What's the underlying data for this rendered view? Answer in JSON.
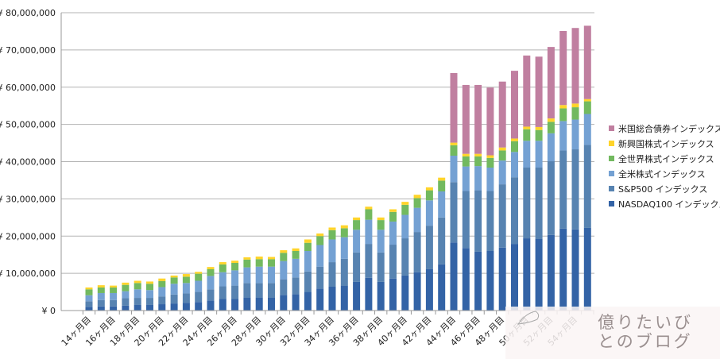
{
  "chart_data": {
    "type": "bar",
    "stacked": true,
    "title": "",
    "xlabel": "",
    "ylabel": "",
    "unit": "million yen",
    "ylim": [
      0,
      80
    ],
    "y_tick_labels": [
      "¥ 0",
      "¥ 10,000,000",
      "¥ 20,000,000",
      "¥ 30,000,000",
      "¥ 40,000,000",
      "¥ 50,000,000",
      "¥ 60,000,000",
      "¥ 70,000,000",
      "¥ 80,000,000"
    ],
    "categories": [
      "14ヶ月目",
      "15ヶ月目",
      "16ヶ月目",
      "17ヶ月目",
      "18ヶ月目",
      "19ヶ月目",
      "20ヶ月目",
      "21ヶ月目",
      "22ヶ月目",
      "23ヶ月目",
      "24ヶ月目",
      "25ヶ月目",
      "26ヶ月目",
      "27ヶ月目",
      "28ヶ月目",
      "29ヶ月目",
      "30ヶ月目",
      "31ヶ月目",
      "32ヶ月目",
      "33ヶ月目",
      "34ヶ月目",
      "35ヶ月目",
      "36ヶ月目",
      "37ヶ月目",
      "38ヶ月目",
      "39ヶ月目",
      "40ヶ月目",
      "41ヶ月目",
      "42ヶ月目",
      "43ヶ月目",
      "44ヶ月目",
      "45ヶ月目",
      "46ヶ月目",
      "47ヶ月目",
      "48ヶ月目",
      "49ヶ月目",
      "50ヶ月目",
      "51ヶ月目",
      "52ヶ月目",
      "53ヶ月目",
      "54ヶ月目",
      "55ヶ月目"
    ],
    "x_tick_labels_every": 2,
    "grid": true,
    "legend_position": "right",
    "series": [
      {
        "name": "NASDAQ100 インデックス",
        "color": "#3363a6",
        "values": [
          1.0,
          1.1,
          1.1,
          1.3,
          1.5,
          1.5,
          1.7,
          1.9,
          2.1,
          2.3,
          2.7,
          3.1,
          3.1,
          3.5,
          3.5,
          3.5,
          4.2,
          4.4,
          5.0,
          5.9,
          6.4,
          6.7,
          7.7,
          8.8,
          7.7,
          8.6,
          9.4,
          10.3,
          11.1,
          12.4,
          18.3,
          16.8,
          15.8,
          16.0,
          16.9,
          17.9,
          19.4,
          19.2,
          20.3,
          22.0,
          21.8,
          22.2
        ]
      },
      {
        "name": "S&P500 インデックス",
        "color": "#5783b1",
        "values": [
          1.5,
          1.7,
          1.7,
          2.0,
          1.9,
          1.9,
          2.1,
          2.4,
          2.5,
          2.7,
          3.0,
          3.4,
          3.6,
          3.9,
          3.9,
          3.9,
          4.2,
          4.5,
          5.5,
          5.9,
          6.6,
          7.2,
          7.9,
          9.1,
          7.9,
          9.1,
          10.0,
          10.8,
          11.7,
          12.6,
          16.2,
          15.3,
          16.5,
          16.1,
          17.0,
          17.9,
          19.0,
          19.2,
          19.8,
          21.0,
          21.5,
          22.3
        ]
      },
      {
        "name": "全米株式インデックス",
        "color": "#74a1d3",
        "values": [
          1.6,
          1.9,
          1.9,
          1.9,
          2.3,
          2.1,
          2.5,
          2.9,
          2.8,
          3.0,
          3.6,
          3.8,
          4.1,
          4.2,
          4.4,
          4.4,
          4.9,
          5.0,
          5.5,
          5.8,
          6.1,
          5.8,
          6.1,
          6.5,
          6.1,
          6.2,
          6.3,
          6.5,
          6.8,
          7.0,
          7.1,
          6.6,
          6.5,
          6.3,
          6.4,
          6.8,
          7.2,
          7.2,
          7.5,
          7.9,
          8.0,
          8.3
        ]
      },
      {
        "name": "全世界株式インデックス",
        "color": "#72b95f",
        "values": [
          1.6,
          1.5,
          1.5,
          1.7,
          1.7,
          1.7,
          1.6,
          1.7,
          1.7,
          1.9,
          1.8,
          2.1,
          2.0,
          2.1,
          2.0,
          2.0,
          2.2,
          2.1,
          2.2,
          2.4,
          2.5,
          2.4,
          2.6,
          2.8,
          2.6,
          2.6,
          2.7,
          2.6,
          2.7,
          2.9,
          2.8,
          2.7,
          2.6,
          2.6,
          2.7,
          2.9,
          3.1,
          2.9,
          3.1,
          3.4,
          3.3,
          3.4
        ]
      },
      {
        "name": "新興国株式インデックス",
        "color": "#ffd42a",
        "values": [
          0.5,
          0.6,
          0.5,
          0.6,
          0.6,
          0.6,
          0.7,
          0.5,
          0.7,
          0.5,
          0.6,
          0.6,
          0.6,
          0.6,
          0.7,
          0.6,
          0.7,
          0.7,
          0.9,
          0.7,
          0.7,
          0.8,
          0.7,
          0.7,
          0.7,
          0.7,
          0.8,
          0.9,
          0.8,
          0.8,
          0.7,
          0.7,
          0.7,
          0.7,
          0.8,
          0.7,
          0.7,
          0.8,
          0.9,
          0.9,
          1.0,
          0.6
        ]
      },
      {
        "name": "米国総合債券インデックス",
        "color": "#c07fa0",
        "values": [
          0,
          0,
          0,
          0,
          0,
          0,
          0,
          0,
          0,
          0,
          0,
          0,
          0,
          0,
          0,
          0,
          0,
          0,
          0,
          0,
          0,
          0,
          0,
          0,
          0,
          0,
          0,
          0,
          0,
          0,
          18.7,
          18.5,
          18.5,
          18.2,
          17.7,
          18.2,
          19.1,
          18.9,
          19.2,
          19.9,
          20.3,
          19.7
        ]
      }
    ]
  },
  "legend_order": [
    5,
    4,
    3,
    2,
    1,
    0
  ],
  "watermark": {
    "text": "億りたいびとのブログ"
  }
}
